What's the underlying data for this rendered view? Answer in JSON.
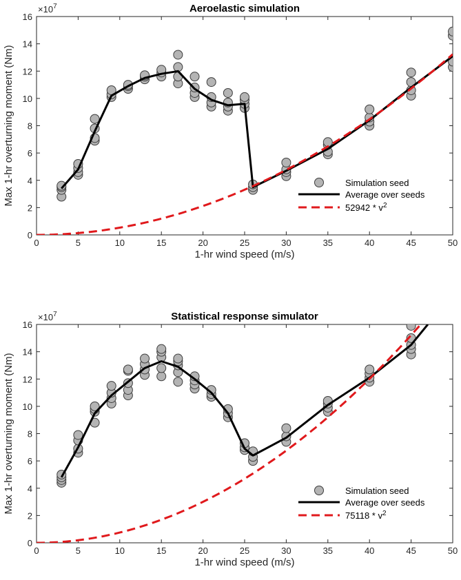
{
  "chart_data": [
    {
      "type": "scatter",
      "title": "Aeroelastic simulation",
      "xlabel": "1-hr wind speed (m/s)",
      "ylabel": "Max 1-hr overturning moment (Nm)",
      "y_multiplier": "×10",
      "y_exponent": "7",
      "xlim": [
        0,
        50
      ],
      "ylim": [
        0,
        16
      ],
      "xticks": [
        0,
        5,
        10,
        15,
        20,
        25,
        30,
        35,
        40,
        45,
        50
      ],
      "yticks": [
        0,
        2,
        4,
        6,
        8,
        10,
        12,
        14,
        16
      ],
      "grid": false,
      "legend_position": "lower-right",
      "series": [
        {
          "name": "Simulation seed",
          "kind": "points",
          "color": "#b4b4b4",
          "points": [
            [
              3,
              2.8
            ],
            [
              3,
              3.3
            ],
            [
              3,
              3.5
            ],
            [
              3,
              3.6
            ],
            [
              5,
              4.4
            ],
            [
              5,
              4.6
            ],
            [
              5,
              4.9
            ],
            [
              5,
              5.2
            ],
            [
              7,
              6.9
            ],
            [
              7,
              7.1
            ],
            [
              7,
              7.8
            ],
            [
              7,
              8.5
            ],
            [
              9,
              10.1
            ],
            [
              9,
              10.3
            ],
            [
              9,
              10.6
            ],
            [
              11,
              10.7
            ],
            [
              11,
              10.9
            ],
            [
              11,
              11.0
            ],
            [
              13,
              11.4
            ],
            [
              13,
              11.6
            ],
            [
              13,
              11.7
            ],
            [
              15,
              11.6
            ],
            [
              15,
              11.9
            ],
            [
              15,
              12.1
            ],
            [
              17,
              11.1
            ],
            [
              17,
              11.6
            ],
            [
              17,
              12.3
            ],
            [
              17,
              13.2
            ],
            [
              19,
              10.1
            ],
            [
              19,
              10.4
            ],
            [
              19,
              10.8
            ],
            [
              19,
              11.6
            ],
            [
              21,
              9.4
            ],
            [
              21,
              9.7
            ],
            [
              21,
              10.1
            ],
            [
              21,
              11.2
            ],
            [
              23,
              9.1
            ],
            [
              23,
              9.4
            ],
            [
              23,
              9.7
            ],
            [
              23,
              10.4
            ],
            [
              25,
              9.3
            ],
            [
              25,
              9.6
            ],
            [
              25,
              9.9
            ],
            [
              25,
              10.1
            ],
            [
              26,
              3.3
            ],
            [
              26,
              3.5
            ],
            [
              26,
              3.7
            ],
            [
              30,
              4.3
            ],
            [
              30,
              4.6
            ],
            [
              30,
              4.8
            ],
            [
              30,
              5.3
            ],
            [
              35,
              5.9
            ],
            [
              35,
              6.1
            ],
            [
              35,
              6.6
            ],
            [
              35,
              6.8
            ],
            [
              40,
              8.0
            ],
            [
              40,
              8.3
            ],
            [
              40,
              8.6
            ],
            [
              40,
              9.2
            ],
            [
              45,
              10.2
            ],
            [
              45,
              10.6
            ],
            [
              45,
              11.2
            ],
            [
              45,
              11.9
            ],
            [
              50,
              12.3
            ],
            [
              50,
              12.7
            ],
            [
              50,
              14.6
            ],
            [
              50,
              14.9
            ]
          ]
        },
        {
          "name": "Average over seeds",
          "kind": "line",
          "color": "#000000",
          "x": [
            3,
            5,
            7,
            9,
            11,
            13,
            15,
            17,
            19,
            21,
            23,
            25,
            26,
            30,
            35,
            40,
            45,
            50
          ],
          "y": [
            3.4,
            4.8,
            7.6,
            10.2,
            10.9,
            11.5,
            11.8,
            12.0,
            10.7,
            9.9,
            9.5,
            9.6,
            3.5,
            4.7,
            6.3,
            8.4,
            10.8,
            13.1
          ]
        },
        {
          "name": "52942 * v",
          "name_sup": "2",
          "kind": "dashed",
          "color": "#e0191c",
          "coef": 52942,
          "x_range": [
            0,
            50
          ]
        }
      ]
    },
    {
      "type": "scatter",
      "title": "Statistical response simulator",
      "xlabel": "1-hr wind speed (m/s)",
      "ylabel": "Max 1-hr overturning moment (Nm)",
      "y_multiplier": "×10",
      "y_exponent": "7",
      "xlim": [
        0,
        50
      ],
      "ylim": [
        0,
        16
      ],
      "xticks": [
        0,
        5,
        10,
        15,
        20,
        25,
        30,
        35,
        40,
        45,
        50
      ],
      "yticks": [
        0,
        2,
        4,
        6,
        8,
        10,
        12,
        14,
        16
      ],
      "grid": false,
      "legend_position": "lower-right",
      "series": [
        {
          "name": "Simulation seed",
          "kind": "points",
          "color": "#b4b4b4",
          "points": [
            [
              3,
              4.4
            ],
            [
              3,
              4.6
            ],
            [
              3,
              4.8
            ],
            [
              3,
              5.0
            ],
            [
              5,
              6.6
            ],
            [
              5,
              6.9
            ],
            [
              5,
              7.5
            ],
            [
              5,
              7.9
            ],
            [
              7,
              8.8
            ],
            [
              7,
              9.6
            ],
            [
              7,
              9.8
            ],
            [
              7,
              10.0
            ],
            [
              9,
              10.2
            ],
            [
              9,
              10.6
            ],
            [
              9,
              11.0
            ],
            [
              9,
              11.5
            ],
            [
              11,
              10.8
            ],
            [
              11,
              11.2
            ],
            [
              11,
              11.7
            ],
            [
              11,
              12.6
            ],
            [
              11,
              12.7
            ],
            [
              13,
              12.3
            ],
            [
              13,
              12.7
            ],
            [
              13,
              13.1
            ],
            [
              13,
              13.5
            ],
            [
              15,
              12.2
            ],
            [
              15,
              12.8
            ],
            [
              15,
              13.6
            ],
            [
              15,
              14.0
            ],
            [
              15,
              14.2
            ],
            [
              17,
              11.8
            ],
            [
              17,
              12.5
            ],
            [
              17,
              13.0
            ],
            [
              17,
              13.3
            ],
            [
              17,
              13.5
            ],
            [
              19,
              11.3
            ],
            [
              19,
              11.6
            ],
            [
              19,
              11.9
            ],
            [
              19,
              12.2
            ],
            [
              21,
              10.7
            ],
            [
              21,
              10.9
            ],
            [
              21,
              11.2
            ],
            [
              23,
              9.2
            ],
            [
              23,
              9.5
            ],
            [
              23,
              9.8
            ],
            [
              25,
              6.8
            ],
            [
              25,
              7.0
            ],
            [
              25,
              7.3
            ],
            [
              26,
              6.0
            ],
            [
              26,
              6.3
            ],
            [
              26,
              6.7
            ],
            [
              30,
              7.4
            ],
            [
              30,
              7.8
            ],
            [
              30,
              8.4
            ],
            [
              35,
              9.6
            ],
            [
              35,
              9.9
            ],
            [
              35,
              10.2
            ],
            [
              35,
              10.4
            ],
            [
              40,
              11.8
            ],
            [
              40,
              12.1
            ],
            [
              40,
              12.4
            ],
            [
              40,
              12.7
            ],
            [
              45,
              13.8
            ],
            [
              45,
              14.2
            ],
            [
              45,
              14.5
            ],
            [
              45,
              15.0
            ],
            [
              45,
              15.9
            ]
          ]
        },
        {
          "name": "Average over seeds",
          "kind": "line",
          "color": "#000000",
          "x": [
            3,
            5,
            7,
            9,
            11,
            13,
            15,
            17,
            19,
            21,
            23,
            25,
            26,
            30,
            35,
            40,
            45,
            47
          ],
          "y": [
            4.8,
            7.0,
            9.5,
            10.8,
            11.8,
            12.8,
            13.3,
            12.9,
            12.0,
            11.0,
            9.5,
            6.9,
            6.4,
            7.7,
            10.1,
            12.1,
            14.5,
            16.0
          ]
        },
        {
          "name": "75118 * v",
          "name_sup": "2",
          "kind": "dashed",
          "color": "#e0191c",
          "coef": 75118,
          "x_range": [
            0,
            46
          ]
        }
      ]
    }
  ]
}
